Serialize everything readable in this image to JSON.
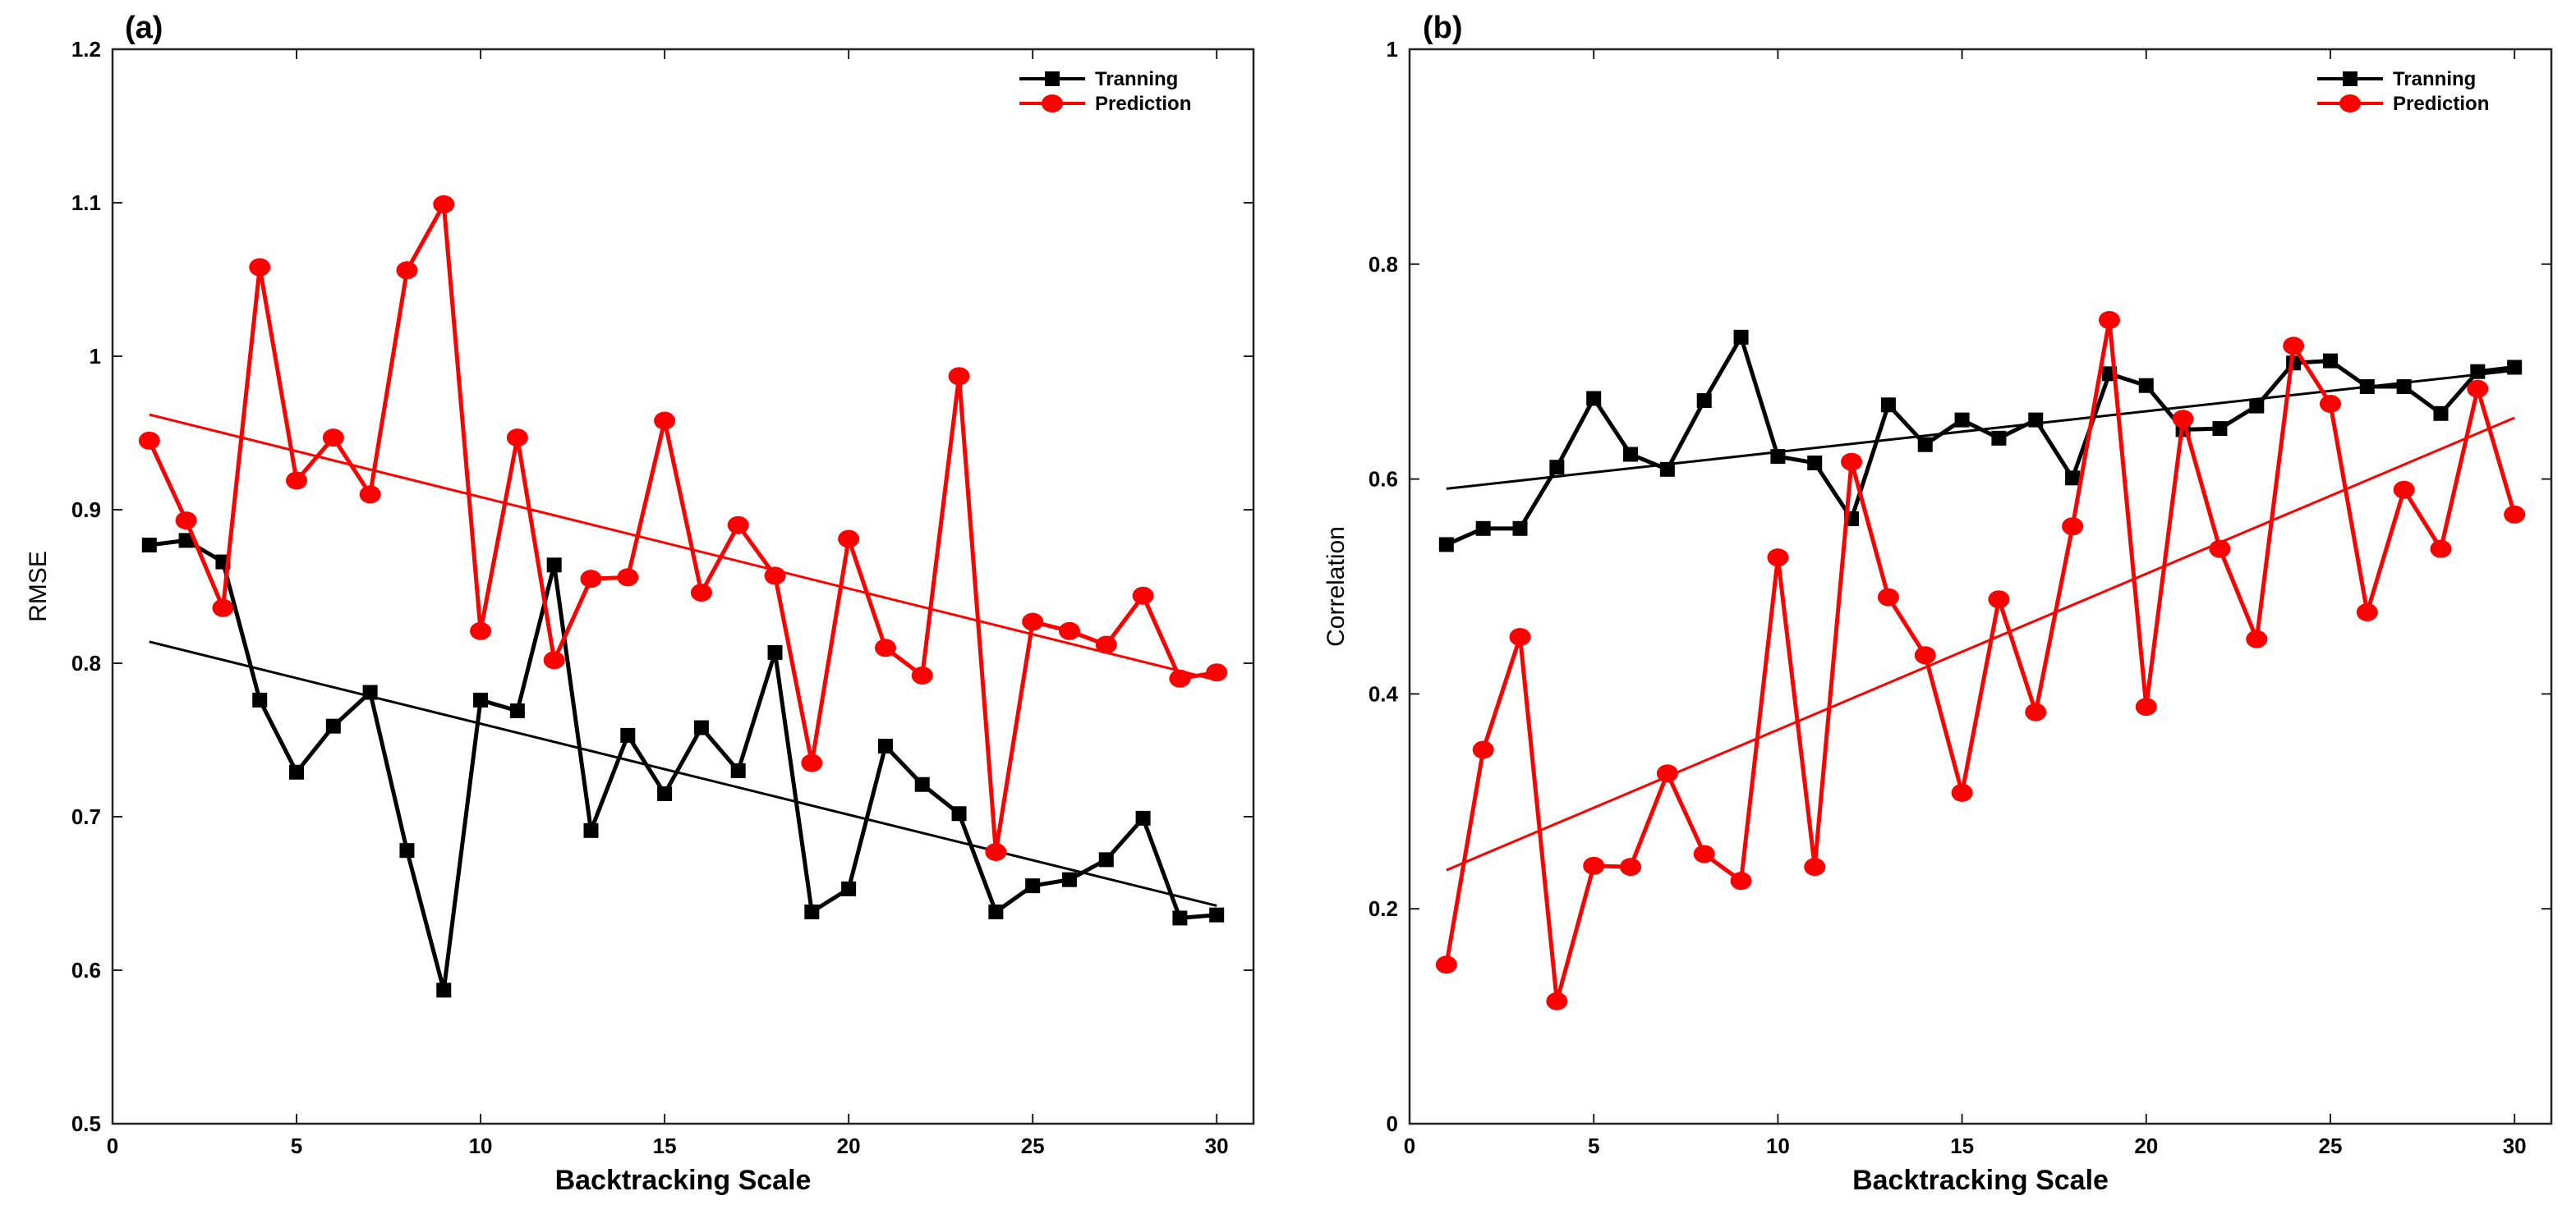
{
  "chart_data": [
    {
      "type": "line",
      "panel_label": "(a)",
      "xlabel": "Backtracking Scale",
      "ylabel": "RMSE",
      "xlim": [
        0,
        31
      ],
      "ylim": [
        0.5,
        1.2
      ],
      "xticks": [
        0,
        5,
        10,
        15,
        20,
        25,
        30
      ],
      "yticks": [
        0.5,
        0.6,
        0.7,
        0.8,
        0.9,
        1.0,
        1.1,
        1.2
      ],
      "ytick_labels": [
        "0.5",
        "0.6",
        "0.7",
        "0.8",
        "0.9",
        "1",
        "1.1",
        "1.2"
      ],
      "legend_position": "top-right",
      "x": [
        1,
        2,
        3,
        4,
        5,
        6,
        7,
        8,
        9,
        10,
        11,
        12,
        13,
        14,
        15,
        16,
        17,
        18,
        19,
        20,
        21,
        22,
        23,
        24,
        25,
        26,
        27,
        28,
        29,
        30
      ],
      "series": [
        {
          "name": "Tranning",
          "color": "#000000",
          "marker": "square",
          "values": [
            0.877,
            0.88,
            0.866,
            0.776,
            0.729,
            0.759,
            0.781,
            0.678,
            0.587,
            0.776,
            0.769,
            0.864,
            0.691,
            0.753,
            0.715,
            0.758,
            0.73,
            0.807,
            0.638,
            0.653,
            0.746,
            0.721,
            0.702,
            0.638,
            0.655,
            0.659,
            0.672,
            0.699,
            0.634,
            0.636
          ],
          "trend": [
            0.814,
            0.642
          ]
        },
        {
          "name": "Prediction",
          "color": "#ff0000",
          "marker": "circle",
          "values": [
            0.945,
            0.893,
            0.836,
            1.058,
            0.919,
            0.947,
            0.91,
            1.056,
            1.099,
            0.821,
            0.947,
            0.802,
            0.855,
            0.856,
            0.958,
            0.846,
            0.89,
            0.857,
            0.735,
            0.881,
            0.81,
            0.792,
            0.987,
            0.677,
            0.827,
            0.821,
            0.812,
            0.844,
            0.79,
            0.794
          ],
          "trend": [
            0.962,
            0.789
          ]
        }
      ]
    },
    {
      "type": "line",
      "panel_label": "(b)",
      "xlabel": "Backtracking Scale",
      "ylabel": "Correlation",
      "xlim": [
        0,
        31
      ],
      "ylim": [
        0,
        1
      ],
      "xticks": [
        0,
        5,
        10,
        15,
        20,
        25,
        30
      ],
      "yticks": [
        0,
        0.2,
        0.4,
        0.6,
        0.8,
        1.0
      ],
      "ytick_labels": [
        "0",
        "0.2",
        "0.4",
        "0.6",
        "0.8",
        "1"
      ],
      "legend_position": "top-right",
      "x": [
        1,
        2,
        3,
        4,
        5,
        6,
        7,
        8,
        9,
        10,
        11,
        12,
        13,
        14,
        15,
        16,
        17,
        18,
        19,
        20,
        21,
        22,
        23,
        24,
        25,
        26,
        27,
        28,
        29,
        30
      ],
      "series": [
        {
          "name": "Tranning",
          "color": "#000000",
          "marker": "square",
          "values": [
            0.539,
            0.554,
            0.554,
            0.611,
            0.675,
            0.623,
            0.609,
            0.673,
            0.732,
            0.621,
            0.615,
            0.563,
            0.669,
            0.632,
            0.655,
            0.638,
            0.655,
            0.601,
            0.698,
            0.687,
            0.646,
            0.647,
            0.668,
            0.708,
            0.71,
            0.686,
            0.686,
            0.661,
            0.7,
            0.704
          ],
          "trend": [
            0.591,
            0.701
          ]
        },
        {
          "name": "Prediction",
          "color": "#ff0000",
          "marker": "circle",
          "values": [
            0.148,
            0.348,
            0.453,
            0.114,
            0.24,
            0.239,
            0.326,
            0.251,
            0.226,
            0.527,
            0.239,
            0.616,
            0.49,
            0.436,
            0.308,
            0.488,
            0.383,
            0.556,
            0.748,
            0.388,
            0.656,
            0.535,
            0.451,
            0.724,
            0.67,
            0.476,
            0.59,
            0.535,
            0.684,
            0.567
          ],
          "trend": [
            0.236,
            0.657
          ]
        }
      ]
    }
  ]
}
